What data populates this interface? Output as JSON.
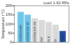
{
  "chart_data": {
    "type": "bar",
    "annotation": "Load 1.82 MPa",
    "y_label": "Temperature (°C)",
    "categories": [
      "HOSTAFORM",
      "HOSTACOM M2",
      "HOSTACOM M4",
      "PBT",
      "PA 6",
      "PP",
      "HDPE"
    ],
    "values": [
      165,
      150,
      130,
      120,
      110,
      95,
      60
    ],
    "colors": [
      "#6ec6ea",
      "#6ec6ea",
      "#d9d9d9",
      "#d9d9d9",
      "#d9d9d9",
      "#d9d9d9",
      "#1f4e9c"
    ],
    "ylim": [
      0,
      200
    ],
    "yticks": [
      0,
      50,
      100,
      150,
      200
    ],
    "tick_labels": "y"
  }
}
